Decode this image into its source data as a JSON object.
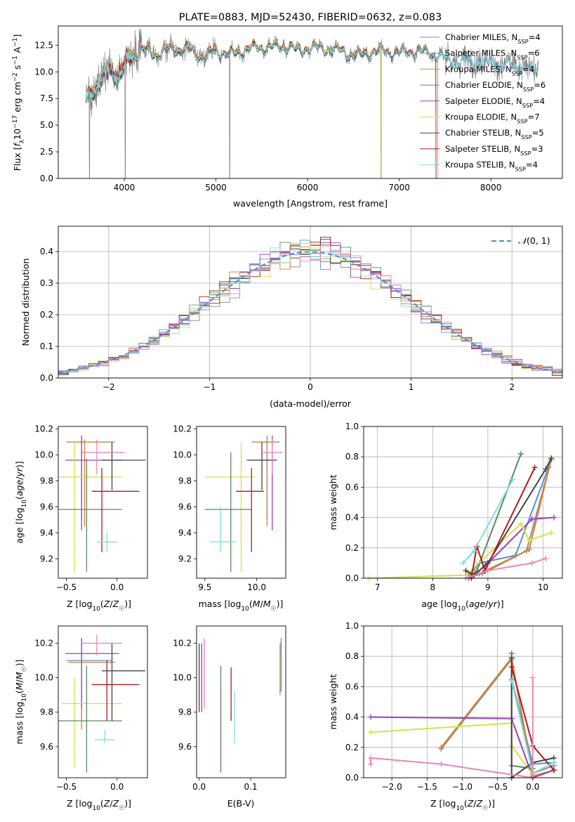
{
  "chart_data": [
    {
      "id": "spectrum",
      "type": "line",
      "title": "PLATE=0883, MJD=52430, FIBERID=0632, z=0.083",
      "xlabel": "wavelength [Angstrom, rest frame]",
      "ylabel": "Flux [f_λ 10^-17 erg cm^-2 s^-1 A^-1]",
      "xlim": [
        3280,
        8780
      ],
      "ylim": [
        0,
        14.3
      ],
      "xticks": [
        4000,
        5000,
        6000,
        7000,
        8000
      ],
      "yticks": [
        0.0,
        2.5,
        5.0,
        7.5,
        10.0,
        12.5
      ],
      "grid": false,
      "legend": "upper right",
      "data": {
        "name": "data",
        "color": "#7f7f7f"
      },
      "series": [
        {
          "name": "Chabrier MILES, N",
          "sub": "SSP",
          "tail": "=4",
          "color": "#5b8fd4",
          "offset": -0.05,
          "xmax": 8500
        },
        {
          "name": "Salpeter MILES, N",
          "sub": "SSP",
          "tail": "=6",
          "color": "#8c8c8c",
          "offset": 0.05,
          "xmax": 7400
        },
        {
          "name": "Kroupa MILES, N",
          "sub": "SSP",
          "tail": "=4",
          "color": "#d9822b",
          "offset": 0.1,
          "xmax": 7420
        },
        {
          "name": "Chabrier ELODIE, N",
          "sub": "SSP",
          "tail": "=6",
          "color": "#5a8a60",
          "offset": -0.1,
          "xmax": 6800
        },
        {
          "name": "Salpeter ELODIE, N",
          "sub": "SSP",
          "tail": "=4",
          "color": "#9b40c0",
          "offset": 0.0,
          "xmax": 6800
        },
        {
          "name": "Kroupa ELODIE, N",
          "sub": "SSP",
          "tail": "=7",
          "color": "#d4e24a",
          "offset": 0.08,
          "xmax": 6800
        },
        {
          "name": "Chabrier STELIB, N",
          "sub": "SSP",
          "tail": "=5",
          "color": "#444444",
          "offset": -0.08,
          "xmax": 7400
        },
        {
          "name": "Salpeter STELIB, N",
          "sub": "SSP",
          "tail": "=3",
          "color": "#b01c1c",
          "offset": 0.03,
          "xmax": 7400
        },
        {
          "name": "Kroupa STELIB, N",
          "sub": "SSP",
          "tail": "=4",
          "color": "#7fdde0",
          "offset": -0.03,
          "xmax": 8500
        }
      ],
      "shape": [
        [
          3580,
          7.5
        ],
        [
          3650,
          8.3
        ],
        [
          3750,
          9.0
        ],
        [
          3850,
          10.5
        ],
        [
          3930,
          9.5
        ],
        [
          3970,
          10.0
        ],
        [
          4050,
          11.4
        ],
        [
          4200,
          12.0
        ],
        [
          4350,
          11.7
        ],
        [
          4500,
          12.1
        ],
        [
          4700,
          12.2
        ],
        [
          4861,
          11.4
        ],
        [
          5000,
          12.0
        ],
        [
          5175,
          11.6
        ],
        [
          5300,
          12.1
        ],
        [
          5500,
          12.3
        ],
        [
          5800,
          12.4
        ],
        [
          5890,
          11.9
        ],
        [
          6000,
          12.3
        ],
        [
          6300,
          12.1
        ],
        [
          6563,
          11.5
        ],
        [
          6700,
          12.0
        ],
        [
          7000,
          11.8
        ],
        [
          7200,
          12.0
        ],
        [
          7400,
          11.6
        ],
        [
          7600,
          11.0
        ],
        [
          7900,
          11.0
        ],
        [
          8200,
          10.6
        ],
        [
          8500,
          10.2
        ]
      ]
    },
    {
      "id": "residuals",
      "type": "step",
      "xlabel": "(data-model)/error",
      "ylabel": "Normed distribution",
      "xlim": [
        -2.5,
        2.5
      ],
      "ylim": [
        0,
        0.48
      ],
      "xticks": [
        -2,
        -1,
        0,
        1,
        2
      ],
      "yticks": [
        0.0,
        0.1,
        0.2,
        0.3,
        0.4
      ],
      "grid": true,
      "legend_label": "N(0,1)",
      "gaussian_color": "#5b8fd4"
    },
    {
      "id": "age-vs-z",
      "type": "errorbar",
      "xlabel": "Z [log10(Z/Z☉)]",
      "ylabel": "age [log10(age/yr)]",
      "xlim": [
        -0.58,
        0.3
      ],
      "ylim": [
        9.05,
        10.22
      ],
      "xticks": [
        -0.5,
        0.0
      ],
      "yticks": [
        9.2,
        9.4,
        9.6,
        9.8,
        10.0,
        10.2
      ],
      "points": [
        {
          "x": -0.35,
          "y": 10.1,
          "xlo": -0.5,
          "xhi": -0.05,
          "ylo": 9.5,
          "yhi": 10.15,
          "color": "#5b8fd4"
        },
        {
          "x": -0.32,
          "y": 10.1,
          "xlo": -0.48,
          "xhi": -0.02,
          "ylo": 9.45,
          "yhi": 10.12,
          "color": "#d9822b"
        },
        {
          "x": -0.35,
          "y": 9.96,
          "xlo": -0.51,
          "xhi": 0.05,
          "ylo": 9.42,
          "yhi": 10.15,
          "color": "#9b40c0"
        },
        {
          "x": -0.42,
          "y": 9.83,
          "xlo": -0.58,
          "xhi": 0.05,
          "ylo": 9.1,
          "yhi": 10.1,
          "color": "#d4e24a"
        },
        {
          "x": -0.3,
          "y": 9.58,
          "xlo": -0.58,
          "xhi": 0.05,
          "ylo": 9.1,
          "yhi": 9.97,
          "color": "#5a8a60"
        },
        {
          "x": -0.05,
          "y": 9.96,
          "xlo": -0.15,
          "xhi": 0.28,
          "ylo": 9.73,
          "yhi": 10.1,
          "color": "#444444"
        },
        {
          "x": -0.15,
          "y": 9.72,
          "xlo": -0.25,
          "xhi": 0.22,
          "ylo": 9.25,
          "yhi": 9.9,
          "color": "#b01c1c"
        },
        {
          "x": -0.1,
          "y": 9.33,
          "xlo": -0.2,
          "xhi": 0.0,
          "ylo": 9.25,
          "yhi": 9.4,
          "color": "#7fdde0"
        },
        {
          "x": -0.2,
          "y": 10.02,
          "xlo": -0.35,
          "xhi": 0.07,
          "ylo": 9.85,
          "yhi": 10.12,
          "color": "#e887b8"
        }
      ]
    },
    {
      "id": "age-vs-mass",
      "type": "errorbar",
      "xlabel": "mass [log10(M/M☉)]",
      "ylabel": "",
      "xlim": [
        9.42,
        10.28
      ],
      "ylim": [
        9.05,
        10.22
      ],
      "xticks": [
        9.5,
        10.0
      ],
      "yticks": [
        9.2,
        9.4,
        9.6,
        9.8,
        10.0,
        10.2
      ],
      "points": [
        {
          "x": 10.1,
          "y": 10.1,
          "xlo": 9.95,
          "xhi": 10.22,
          "ylo": 9.5,
          "yhi": 10.15,
          "color": "#5b8fd4"
        },
        {
          "x": 10.1,
          "y": 10.1,
          "xlo": 9.97,
          "xhi": 10.2,
          "ylo": 9.45,
          "yhi": 10.12,
          "color": "#d9822b"
        },
        {
          "x": 10.15,
          "y": 9.96,
          "xlo": 9.9,
          "xhi": 10.2,
          "ylo": 9.42,
          "yhi": 10.15,
          "color": "#9b40c0"
        },
        {
          "x": 9.85,
          "y": 9.83,
          "xlo": 9.5,
          "xhi": 9.98,
          "ylo": 9.1,
          "yhi": 10.1,
          "color": "#d4e24a"
        },
        {
          "x": 9.75,
          "y": 9.58,
          "xlo": 9.5,
          "xhi": 9.95,
          "ylo": 9.1,
          "yhi": 10.02,
          "color": "#5a8a60"
        },
        {
          "x": 10.05,
          "y": 9.96,
          "xlo": 9.92,
          "xhi": 10.18,
          "ylo": 9.73,
          "yhi": 10.1,
          "color": "#444444"
        },
        {
          "x": 9.95,
          "y": 9.72,
          "xlo": 9.8,
          "xhi": 10.07,
          "ylo": 9.25,
          "yhi": 9.9,
          "color": "#b01c1c"
        },
        {
          "x": 9.65,
          "y": 9.33,
          "xlo": 9.55,
          "xhi": 9.8,
          "ylo": 9.25,
          "yhi": 9.6,
          "color": "#7fdde0"
        },
        {
          "x": 10.15,
          "y": 10.02,
          "xlo": 10.05,
          "xhi": 10.25,
          "ylo": 9.85,
          "yhi": 10.12,
          "color": "#e887b8"
        }
      ]
    },
    {
      "id": "mass-weight-vs-age",
      "type": "line",
      "xlabel": "age [log10(age/yr)]",
      "ylabel": "mass weight",
      "xlim": [
        6.75,
        10.35
      ],
      "ylim": [
        0,
        1.0
      ],
      "xticks": [
        7,
        8,
        9,
        10
      ],
      "yticks": [
        0.0,
        0.2,
        0.4,
        0.6,
        0.8,
        1.0
      ],
      "grid": true,
      "series": [
        {
          "color": "#5b8fd4",
          "x": [
            8.65,
            8.85,
            9.5,
            10.1
          ],
          "y": [
            0.02,
            0.1,
            0.15,
            0.73
          ]
        },
        {
          "color": "#8c8c8c",
          "x": [
            8.7,
            8.9,
            9.7,
            10.15
          ],
          "y": [
            0.01,
            0.03,
            0.18,
            0.78
          ]
        },
        {
          "color": "#d9822b",
          "x": [
            8.6,
            8.85,
            9.75,
            10.15
          ],
          "y": [
            0.02,
            0.03,
            0.19,
            0.79
          ]
        },
        {
          "color": "#5a8a60",
          "x": [
            8.65,
            8.8,
            9.6
          ],
          "y": [
            0.0,
            0.05,
            0.82
          ]
        },
        {
          "color": "#9b40c0",
          "x": [
            8.7,
            8.95,
            9.8,
            10.2
          ],
          "y": [
            0.01,
            0.08,
            0.39,
            0.4
          ]
        },
        {
          "color": "#d4e24a",
          "x": [
            6.85,
            8.6,
            9.6,
            9.75,
            10.15
          ],
          "y": [
            0.0,
            0.02,
            0.36,
            0.25,
            0.3
          ]
        },
        {
          "color": "#444444",
          "x": [
            8.6,
            8.75,
            9.0,
            10.05,
            10.15
          ],
          "y": [
            0.05,
            0.02,
            0.1,
            0.72,
            0.79
          ]
        },
        {
          "color": "#b01c1c",
          "x": [
            8.7,
            8.8,
            8.95,
            9.85
          ],
          "y": [
            0.0,
            0.21,
            0.05,
            0.73
          ]
        },
        {
          "color": "#7fdde0",
          "x": [
            8.55,
            8.75,
            9.45
          ],
          "y": [
            0.1,
            0.18,
            0.65
          ]
        },
        {
          "color": "#e887b8",
          "x": [
            8.6,
            9.0,
            9.8,
            10.05
          ],
          "y": [
            0.0,
            0.05,
            0.1,
            0.13
          ]
        }
      ]
    },
    {
      "id": "mass-vs-z",
      "type": "errorbar",
      "xlabel": "Z [log10(Z/Z☉)]",
      "ylabel": "mass [log10(M/M☉)]",
      "xlim": [
        -0.58,
        0.3
      ],
      "ylim": [
        9.42,
        10.3
      ],
      "xticks": [
        -0.5,
        0.0
      ],
      "yticks": [
        9.6,
        9.8,
        10.0,
        10.2
      ],
      "points": [
        {
          "x": -0.35,
          "y": 10.1,
          "xlo": -0.5,
          "xhi": -0.05,
          "ylo": 9.75,
          "yhi": 10.23,
          "color": "#5b8fd4"
        },
        {
          "x": -0.35,
          "y": 10.09,
          "xlo": -0.48,
          "xhi": -0.02,
          "ylo": 9.7,
          "yhi": 10.2,
          "color": "#d9822b"
        },
        {
          "x": -0.35,
          "y": 10.14,
          "xlo": -0.51,
          "xhi": 0.02,
          "ylo": 9.82,
          "yhi": 10.23,
          "color": "#9b40c0"
        },
        {
          "x": -0.42,
          "y": 9.85,
          "xlo": -0.55,
          "xhi": 0.05,
          "ylo": 9.48,
          "yhi": 10.0,
          "color": "#d4e24a"
        },
        {
          "x": -0.3,
          "y": 9.75,
          "xlo": -0.58,
          "xhi": 0.05,
          "ylo": 9.45,
          "yhi": 10.07,
          "color": "#5a8a60"
        },
        {
          "x": -0.05,
          "y": 10.04,
          "xlo": -0.15,
          "xhi": 0.28,
          "ylo": 9.75,
          "yhi": 10.2,
          "color": "#444444"
        },
        {
          "x": -0.1,
          "y": 9.96,
          "xlo": -0.25,
          "xhi": 0.22,
          "ylo": 9.75,
          "yhi": 10.1,
          "color": "#b01c1c"
        },
        {
          "x": -0.12,
          "y": 9.64,
          "xlo": -0.22,
          "xhi": -0.02,
          "ylo": 9.62,
          "yhi": 9.7,
          "color": "#7fdde0"
        },
        {
          "x": -0.2,
          "y": 10.2,
          "xlo": -0.35,
          "xhi": 0.05,
          "ylo": 10.13,
          "yhi": 10.25,
          "color": "#e887b8"
        }
      ]
    },
    {
      "id": "mass-vs-ebv",
      "type": "errorbar",
      "xlabel": "E(B-V)",
      "ylabel": "",
      "xlim": [
        -0.005,
        0.168
      ],
      "ylim": [
        9.42,
        10.3
      ],
      "xticks": [
        0.0,
        0.1
      ],
      "xtick_labels": [
        "0.0",
        "0.1"
      ],
      "yticks": [
        9.6,
        9.8,
        10.0,
        10.2
      ],
      "points": [
        {
          "x": 0.159,
          "y": 10.1,
          "ylo": 9.92,
          "yhi": 10.23,
          "color": "#5b8fd4"
        },
        {
          "x": 0.157,
          "y": 10.09,
          "ylo": 9.9,
          "yhi": 10.2,
          "color": "#d9822b"
        },
        {
          "x": 0.005,
          "y": 10.14,
          "ylo": 9.8,
          "yhi": 10.2,
          "color": "#9b40c0"
        },
        {
          "x": 0.042,
          "y": 9.85,
          "ylo": 9.48,
          "yhi": 9.92,
          "color": "#d4e24a"
        },
        {
          "x": 0.042,
          "y": 9.75,
          "ylo": 9.45,
          "yhi": 10.07,
          "color": "#5a8a60"
        },
        {
          "x": 0.0,
          "y": 10.04,
          "ylo": 9.8,
          "yhi": 10.2,
          "color": "#444444"
        },
        {
          "x": 0.062,
          "y": 9.96,
          "ylo": 9.75,
          "yhi": 10.06,
          "color": "#b01c1c"
        },
        {
          "x": 0.069,
          "y": 9.64,
          "ylo": 9.62,
          "yhi": 9.92,
          "color": "#7fdde0"
        },
        {
          "x": 0.01,
          "y": 10.2,
          "ylo": 9.82,
          "yhi": 10.23,
          "color": "#e887b8"
        }
      ]
    },
    {
      "id": "mass-weight-vs-z",
      "type": "line",
      "xlabel": "Z [log10(Z/Z☉)]",
      "ylabel": "mass weight",
      "xlim": [
        -2.4,
        0.42
      ],
      "ylim": [
        0,
        1.0
      ],
      "xticks": [
        -2.0,
        -1.5,
        -1.0,
        -0.5,
        0.0
      ],
      "yticks": [
        0.0,
        0.2,
        0.4,
        0.6,
        0.8,
        1.0
      ],
      "grid": true,
      "series": [
        {
          "color": "#5b8fd4",
          "x": [
            -0.3,
            0.0,
            0.3
          ],
          "y": [
            0.65,
            0.09,
            0.1
          ]
        },
        {
          "color": "#8c8c8c",
          "x": [
            -1.3,
            -0.3,
            0.0,
            0.3
          ],
          "y": [
            0.19,
            0.78,
            0.03,
            0.08
          ]
        },
        {
          "color": "#d9822b",
          "x": [
            -1.3,
            -0.3,
            0.0,
            0.3
          ],
          "y": [
            0.2,
            0.79,
            0.01,
            0.05
          ]
        },
        {
          "color": "#5a8a60",
          "x": [
            -0.3,
            -0.3,
            0.0
          ],
          "y": [
            0.82,
            0.08,
            0.06
          ]
        },
        {
          "color": "#9b40c0",
          "x": [
            -2.3,
            -0.3,
            0.0,
            0.3
          ],
          "y": [
            0.4,
            0.39,
            0.0,
            0.05
          ]
        },
        {
          "color": "#d4e24a",
          "x": [
            -2.3,
            -0.3,
            -0.3,
            0.0
          ],
          "y": [
            0.3,
            0.36,
            0.21,
            0.02
          ]
        },
        {
          "color": "#444444",
          "x": [
            -0.3,
            -0.3,
            0.0,
            0.3
          ],
          "y": [
            0.79,
            0.0,
            0.1,
            0.13
          ]
        },
        {
          "color": "#b01c1c",
          "x": [
            -0.3,
            0.0,
            0.3
          ],
          "y": [
            0.73,
            0.21,
            0.05
          ]
        },
        {
          "color": "#7fdde0",
          "x": [
            -0.3,
            0.0,
            0.3
          ],
          "y": [
            0.64,
            0.03,
            0.1
          ]
        },
        {
          "color": "#e887b8",
          "x": [
            -2.3,
            -2.3,
            -1.3,
            0.0,
            0.0
          ],
          "y": [
            0.09,
            0.13,
            0.09,
            0.0,
            0.66
          ]
        }
      ]
    }
  ]
}
